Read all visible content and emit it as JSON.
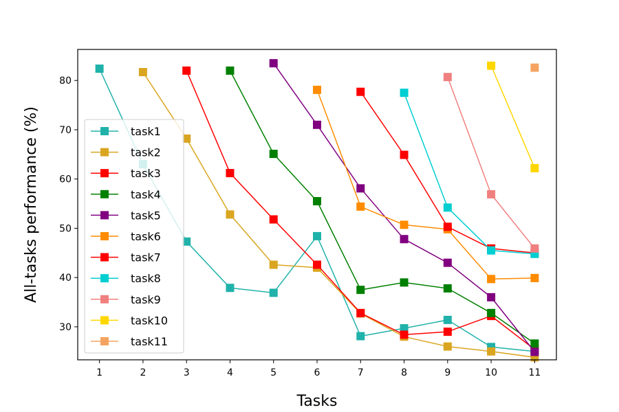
{
  "chart_data": {
    "type": "line",
    "title": "",
    "xlabel": "Tasks",
    "ylabel": "All-tasks performance (%)",
    "x": [
      1,
      2,
      3,
      4,
      5,
      6,
      7,
      8,
      9,
      10,
      11
    ],
    "x_tick_labels": [
      "1",
      "2",
      "3",
      "4",
      "5",
      "6",
      "7",
      "8",
      "9",
      "10",
      "11"
    ],
    "xlim": [
      0.5,
      11.5
    ],
    "ylim": [
      23.3,
      86.3
    ],
    "y_ticks": [
      30,
      40,
      50,
      60,
      70,
      80
    ],
    "y_tick_labels": [
      "30",
      "40",
      "50",
      "60",
      "70",
      "80"
    ],
    "grid": false,
    "legend_position": "center-left",
    "marker": "square",
    "series": [
      {
        "name": "task1",
        "color": "#20b2aa",
        "x": [
          1,
          2,
          3,
          4,
          5,
          6,
          7,
          8,
          9,
          10,
          11
        ],
        "values": [
          82.4,
          63.0,
          47.3,
          37.9,
          36.9,
          48.4,
          28.1,
          29.7,
          31.4,
          25.9,
          25.0
        ]
      },
      {
        "name": "task2",
        "color": "#daa520",
        "x": [
          2,
          3,
          4,
          5,
          6,
          7,
          8,
          9,
          10,
          11
        ],
        "values": [
          81.7,
          68.2,
          52.8,
          42.6,
          42.0,
          32.7,
          28.0,
          26.0,
          25.0,
          23.8
        ]
      },
      {
        "name": "task3",
        "color": "#ff0000",
        "x": [
          3,
          4,
          5,
          6,
          7,
          8,
          9,
          10,
          11
        ],
        "values": [
          82.0,
          61.2,
          51.8,
          42.6,
          32.8,
          28.4,
          29.0,
          32.2,
          25.4
        ]
      },
      {
        "name": "task4",
        "color": "#008000",
        "x": [
          4,
          5,
          6,
          7,
          8,
          9,
          10,
          11
        ],
        "values": [
          82.0,
          65.1,
          55.5,
          37.5,
          39.0,
          37.8,
          32.8,
          26.6
        ]
      },
      {
        "name": "task5",
        "color": "#800080",
        "x": [
          5,
          6,
          7,
          8,
          9,
          10,
          11
        ],
        "values": [
          83.5,
          71.0,
          58.1,
          47.8,
          43.0,
          36.0,
          24.9
        ]
      },
      {
        "name": "task6",
        "color": "#ff8c00",
        "x": [
          6,
          7,
          8,
          9,
          10,
          11
        ],
        "values": [
          78.1,
          54.4,
          50.7,
          49.8,
          39.7,
          39.9
        ]
      },
      {
        "name": "task7",
        "color": "#ff0000",
        "x": [
          7,
          8,
          9,
          10,
          11
        ],
        "values": [
          77.7,
          64.9,
          50.3,
          45.9,
          45.0
        ]
      },
      {
        "name": "task8",
        "color": "#00ced1",
        "x": [
          8,
          9,
          10,
          11
        ],
        "values": [
          77.5,
          54.2,
          45.5,
          44.8
        ]
      },
      {
        "name": "task9",
        "color": "#f08080",
        "x": [
          9,
          10,
          11
        ],
        "values": [
          80.7,
          56.9,
          45.9
        ]
      },
      {
        "name": "task10",
        "color": "#ffd700",
        "x": [
          10,
          11
        ],
        "values": [
          83.0,
          62.2
        ]
      },
      {
        "name": "task11",
        "color": "#f4a460",
        "x": [
          11
        ],
        "values": [
          82.6
        ]
      }
    ]
  }
}
